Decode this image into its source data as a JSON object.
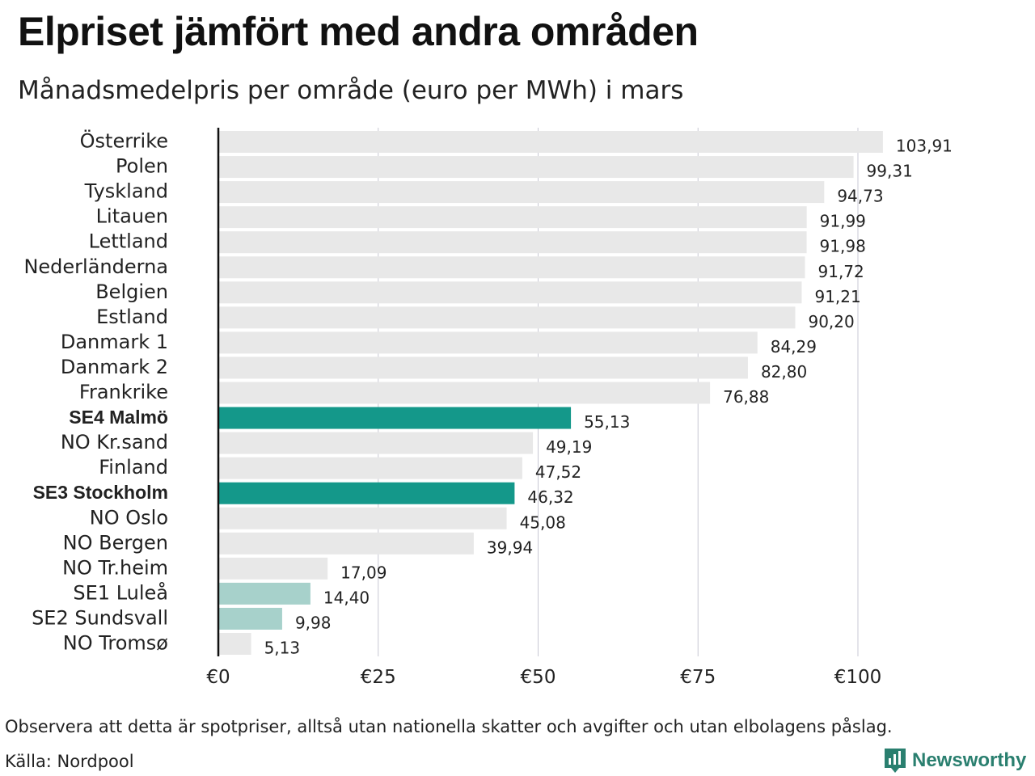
{
  "title": "Elpriset jämfört med andra områden",
  "subtitle": "Månadsmedelpris per område (euro per MWh) i mars",
  "footnote": "Observera att detta är spotpriser, alltså utan nationella skatter och avgifter och utan elbolagens påslag.",
  "source": "Källa: Nordpool",
  "logo": {
    "text": "Newsworthy",
    "icon": "newsworthy-chart-icon"
  },
  "colors": {
    "default_bar": "#e8e8e8",
    "highlight_bar": "#14988a",
    "light_highlight_bar": "#a7d1cb",
    "gridline": "#c8c8d4",
    "axis": "#111111",
    "logo": "#2a7f6f"
  },
  "chart_data": {
    "type": "bar",
    "orientation": "horizontal",
    "title": "Elpriset jämfört med andra områden",
    "subtitle": "Månadsmedelpris per område (euro per MWh) i mars",
    "xlim": [
      0,
      105
    ],
    "x_ticks": [
      {
        "value": 0,
        "label": "€0"
      },
      {
        "value": 25,
        "label": "€25"
      },
      {
        "value": 50,
        "label": "€50"
      },
      {
        "value": 75,
        "label": "€75"
      },
      {
        "value": 100,
        "label": "€100"
      }
    ],
    "grid": true,
    "legend": "none",
    "categories": [
      "Österrike",
      "Polen",
      "Tyskland",
      "Litauen",
      "Lettland",
      "Nederländerna",
      "Belgien",
      "Estland",
      "Danmark 1",
      "Danmark 2",
      "Frankrike",
      "SE4 Malmö",
      "NO Kr.sand",
      "Finland",
      "SE3 Stockholm",
      "NO Oslo",
      "NO Bergen",
      "NO Tr.heim",
      "SE1 Luleå",
      "SE2 Sundsvall",
      "NO Tromsø"
    ],
    "values": [
      103.91,
      99.31,
      94.73,
      91.99,
      91.98,
      91.72,
      91.21,
      90.2,
      84.29,
      82.8,
      76.88,
      55.13,
      49.19,
      47.52,
      46.32,
      45.08,
      39.94,
      17.09,
      14.4,
      9.98,
      5.13
    ],
    "value_labels": [
      "103,91",
      "99,31",
      "94,73",
      "91,99",
      "91,98",
      "91,72",
      "91,21",
      "90,20",
      "84,29",
      "82,80",
      "76,88",
      "55,13",
      "49,19",
      "47,52",
      "46,32",
      "45,08",
      "39,94",
      "17,09",
      "14,40",
      "9,98",
      "5,13"
    ],
    "highlight": [
      "none",
      "none",
      "none",
      "none",
      "none",
      "none",
      "none",
      "none",
      "none",
      "none",
      "none",
      "strong",
      "none",
      "none",
      "strong",
      "none",
      "none",
      "none",
      "light",
      "light",
      "none"
    ]
  }
}
